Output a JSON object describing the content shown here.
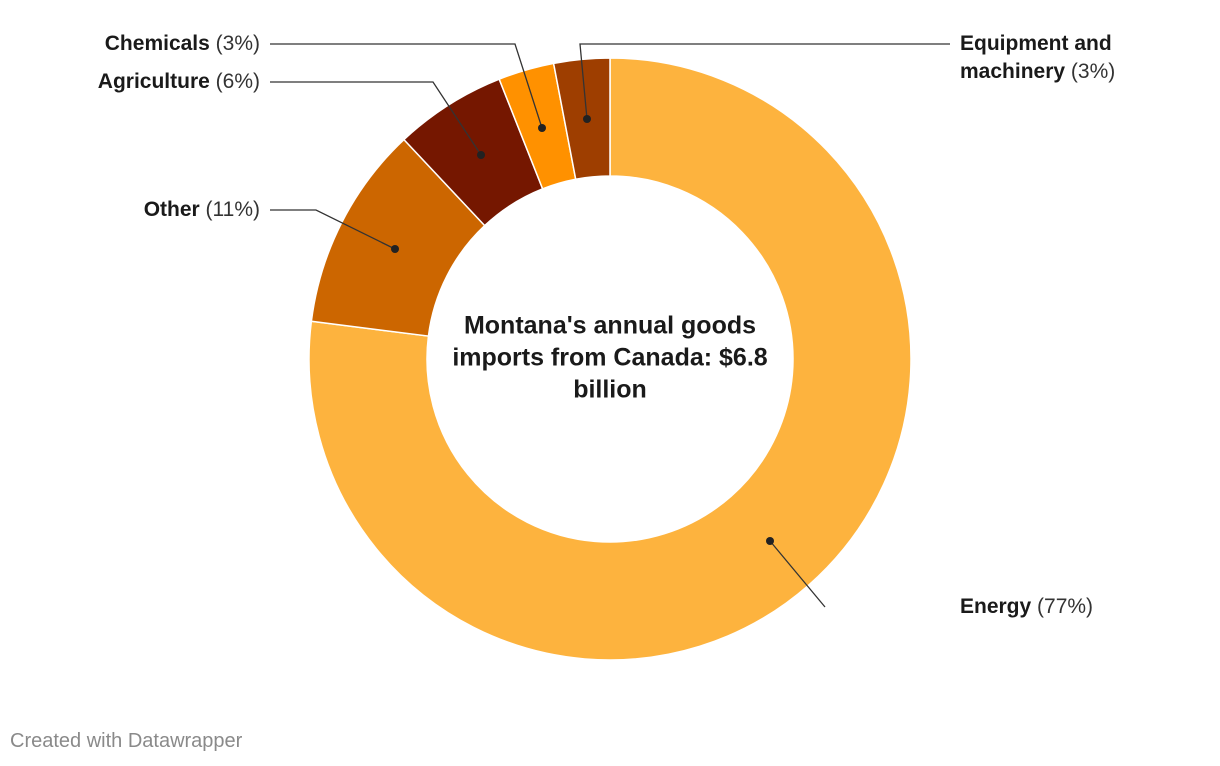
{
  "chart_data": {
    "type": "pie",
    "variant": "donut",
    "center_title": "Montana's annual goods imports from Canada: $6.8 billion",
    "slices": [
      {
        "name": "Energy",
        "percent_label": "(77%)",
        "value": 77,
        "color": "#FDB33E"
      },
      {
        "name": "Other",
        "percent_label": "(11%)",
        "value": 11,
        "color": "#CC6600"
      },
      {
        "name": "Agriculture",
        "percent_label": "(6%)",
        "value": 6,
        "color": "#751700"
      },
      {
        "name": "Chemicals",
        "percent_label": "(3%)",
        "value": 3,
        "color": "#FF9100"
      },
      {
        "name": "Equipment and machinery",
        "percent_label": "(3%)",
        "value": 3,
        "color": "#9E3E00"
      }
    ]
  },
  "footer": {
    "credit": "Created with Datawrapper"
  }
}
